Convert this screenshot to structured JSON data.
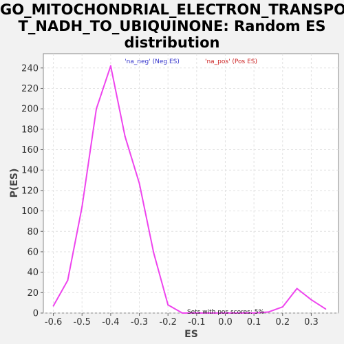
{
  "chart_data": {
    "type": "line",
    "title_lines": [
      "GO_MITOCHONDRIAL_ELECTRON_TRANSPOR",
      "T_NADH_TO_UBIQUINONE: Random ES",
      "distribution"
    ],
    "xlabel": "ES",
    "ylabel": "P(ES)",
    "xlim": [
      -0.635,
      0.395
    ],
    "ylim": [
      0,
      254
    ],
    "x_ticks": [
      -0.6,
      -0.5,
      -0.4,
      -0.3,
      -0.2,
      -0.1,
      0.0,
      0.1,
      0.2,
      0.3
    ],
    "x_tick_labels": [
      "-0.6",
      "-0.5",
      "-0.4",
      "-0.3",
      "-0.2",
      "-0.1",
      "0.0",
      "0.1",
      "0.2",
      "0.3"
    ],
    "y_ticks": [
      0,
      20,
      40,
      60,
      80,
      100,
      120,
      140,
      160,
      180,
      200,
      220,
      240
    ],
    "y_tick_labels": [
      "0",
      "20",
      "40",
      "60",
      "80",
      "100",
      "120",
      "140",
      "160",
      "180",
      "200",
      "220",
      "240"
    ],
    "grid": true,
    "legend": [
      {
        "label": "'na_neg' (Neg ES)",
        "color": "#3333cc"
      },
      {
        "label": "'na_pos' (Pos ES)",
        "color": "#cc2222"
      }
    ],
    "annotation": "Sets with pos scores: 5%",
    "series": [
      {
        "color": "#ee44ee",
        "x": [
          -0.6,
          -0.55,
          -0.5,
          -0.45,
          -0.4,
          -0.35,
          -0.3,
          -0.25,
          -0.2,
          -0.15,
          -0.1,
          -0.05,
          0.0,
          0.05,
          0.1,
          0.15,
          0.2,
          0.25,
          0.3,
          0.35
        ],
        "y": [
          7,
          32,
          104,
          200,
          242,
          173,
          127,
          59,
          8,
          0,
          0,
          0,
          0,
          0,
          0,
          1,
          6,
          24,
          13,
          4
        ]
      }
    ]
  }
}
